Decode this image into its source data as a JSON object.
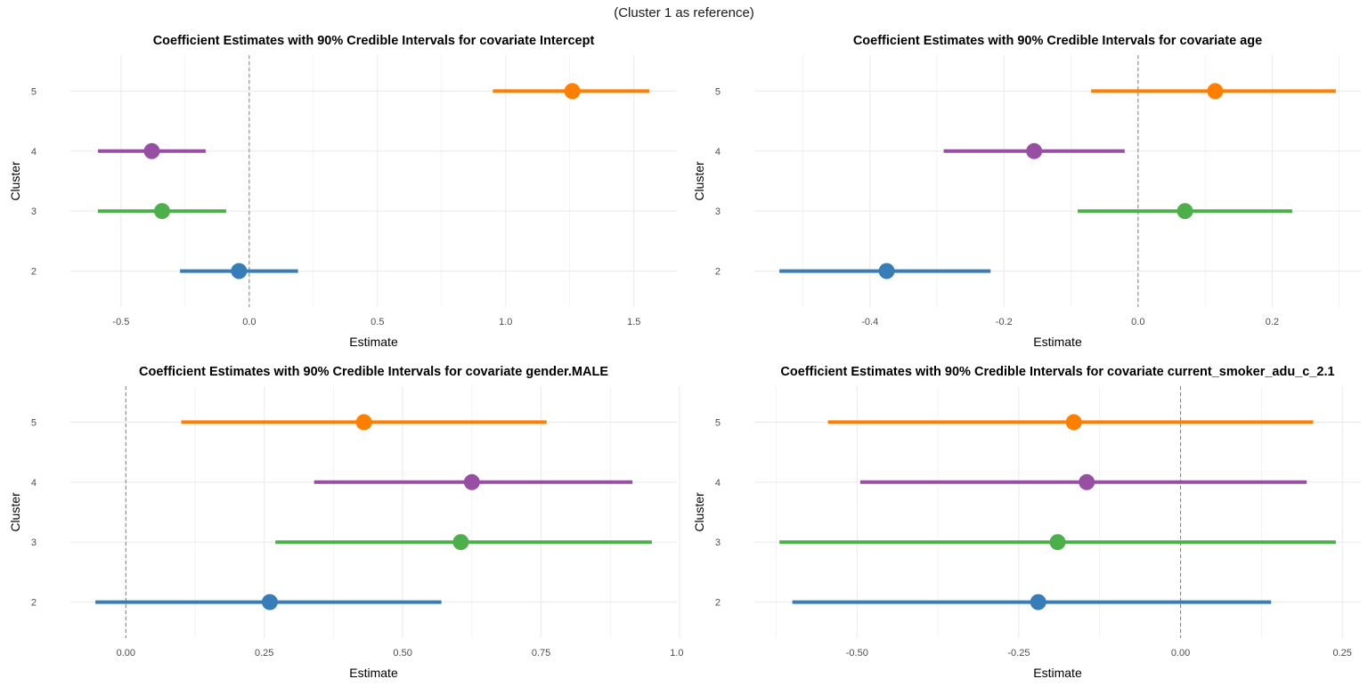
{
  "figure_title": "(Cluster 1 as reference)",
  "colors": {
    "2": "#377EB8",
    "3": "#4DAF4A",
    "4": "#984EA3",
    "5": "#FF7F00",
    "grid": "#EBEBEB",
    "refline": "#808080"
  },
  "chart_data": [
    {
      "type": "scatter",
      "subtype": "pointrange",
      "title": "Coefficient Estimates with 90% Credible Intervals for covariate Intercept",
      "xlabel": "Estimate",
      "ylabel": "Cluster",
      "xlim": [
        -0.6,
        1.57
      ],
      "xticks": [
        -0.5,
        0,
        0.5,
        1,
        1.5
      ],
      "xtick_labels": [
        "-0.5",
        "0.0",
        "0.5",
        "1.0",
        "1.5"
      ],
      "categories": [
        "2",
        "3",
        "4",
        "5"
      ],
      "reference_line": 0,
      "series": [
        {
          "name": "2",
          "estimate": -0.04,
          "lower": -0.27,
          "upper": 0.19
        },
        {
          "name": "3",
          "estimate": -0.34,
          "lower": -0.59,
          "upper": -0.09
        },
        {
          "name": "4",
          "estimate": -0.38,
          "lower": -0.59,
          "upper": -0.17
        },
        {
          "name": "5",
          "estimate": 1.26,
          "lower": 0.95,
          "upper": 1.56
        }
      ]
    },
    {
      "type": "scatter",
      "subtype": "pointrange",
      "title": "Coefficient Estimates with 90% Credible Intervals for covariate age",
      "xlabel": "Estimate",
      "ylabel": "Cluster",
      "xlim": [
        -0.535,
        0.295
      ],
      "xticks": [
        -0.4,
        -0.2,
        0,
        0.2
      ],
      "xtick_labels": [
        "-0.4",
        "-0.2",
        "0.0",
        "0.2"
      ],
      "categories": [
        "2",
        "3",
        "4",
        "5"
      ],
      "reference_line": 0,
      "series": [
        {
          "name": "2",
          "estimate": -0.375,
          "lower": -0.535,
          "upper": -0.22
        },
        {
          "name": "3",
          "estimate": 0.07,
          "lower": -0.09,
          "upper": 0.23
        },
        {
          "name": "4",
          "estimate": -0.155,
          "lower": -0.29,
          "upper": -0.02
        },
        {
          "name": "5",
          "estimate": 0.115,
          "lower": -0.07,
          "upper": 0.295
        }
      ]
    },
    {
      "type": "scatter",
      "subtype": "pointrange",
      "title": "Coefficient Estimates with 90% Credible Intervals for covariate gender.MALE",
      "xlabel": "Estimate",
      "ylabel": "Cluster",
      "xlim": [
        -0.055,
        0.95
      ],
      "xticks": [
        0,
        0.25,
        0.5,
        0.75,
        1
      ],
      "xtick_labels": [
        "0.00",
        "0.25",
        "0.50",
        "0.75",
        "1.00"
      ],
      "categories": [
        "2",
        "3",
        "4",
        "5"
      ],
      "reference_line": 0,
      "series": [
        {
          "name": "2",
          "estimate": 0.26,
          "lower": -0.055,
          "upper": 0.57
        },
        {
          "name": "3",
          "estimate": 0.605,
          "lower": 0.27,
          "upper": 0.95
        },
        {
          "name": "4",
          "estimate": 0.625,
          "lower": 0.34,
          "upper": 0.915
        },
        {
          "name": "5",
          "estimate": 0.43,
          "lower": 0.1,
          "upper": 0.76
        }
      ]
    },
    {
      "type": "scatter",
      "subtype": "pointrange",
      "title": "Coefficient Estimates with 90% Credible Intervals for covariate current_smoker_adu_c_2.1",
      "xlabel": "Estimate",
      "ylabel": "Cluster",
      "xlim": [
        -0.62,
        0.24
      ],
      "xticks": [
        -0.5,
        -0.25,
        0,
        0.25
      ],
      "xtick_labels": [
        "-0.50",
        "-0.25",
        "0.00",
        "0.25"
      ],
      "categories": [
        "2",
        "3",
        "4",
        "5"
      ],
      "reference_line": 0,
      "series": [
        {
          "name": "2",
          "estimate": -0.22,
          "lower": -0.6,
          "upper": 0.14
        },
        {
          "name": "3",
          "estimate": -0.19,
          "lower": -0.62,
          "upper": 0.24
        },
        {
          "name": "4",
          "estimate": -0.145,
          "lower": -0.495,
          "upper": 0.195
        },
        {
          "name": "5",
          "estimate": -0.165,
          "lower": -0.545,
          "upper": 0.205
        }
      ]
    }
  ]
}
